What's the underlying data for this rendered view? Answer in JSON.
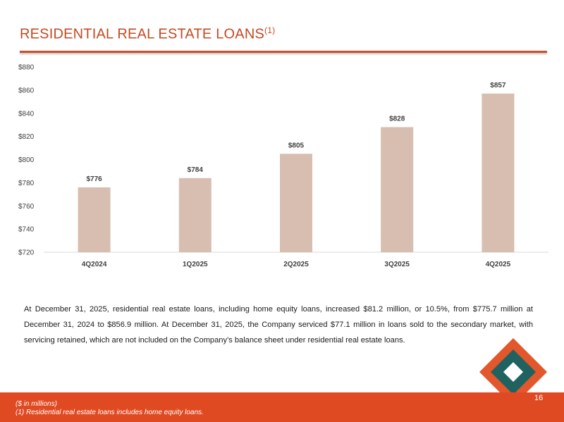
{
  "title": {
    "text": "RESIDENTIAL REAL ESTATE LOANS",
    "superscript": "(1)"
  },
  "colors": {
    "title": "#c44a21",
    "bar": "#d8bdb1",
    "footer": "#e04a22",
    "logo_orange": "#e2572b",
    "logo_teal": "#1f6260"
  },
  "chart_data": {
    "type": "bar",
    "categories": [
      "4Q2024",
      "1Q2025",
      "2Q2025",
      "3Q2025",
      "4Q2025"
    ],
    "values": [
      776,
      784,
      805,
      828,
      857
    ],
    "data_labels": [
      "$776",
      "$784",
      "$805",
      "$828",
      "$857"
    ],
    "ylim": [
      720,
      880
    ],
    "yticks": [
      720,
      740,
      760,
      780,
      800,
      820,
      840,
      860,
      880
    ],
    "ytick_labels": [
      "$720",
      "$740",
      "$760",
      "$780",
      "$800",
      "$820",
      "$840",
      "$860",
      "$880"
    ],
    "grid": false,
    "legend": false
  },
  "body_text": "At December 31, 2025, residential real estate loans, including home equity loans, increased $81.2 million, or 10.5%, from $775.7 million at December 31, 2024 to $856.9 million. At December 31, 2025, the Company serviced $77.1 million in loans sold to the secondary market, with servicing retained, which are not included on the Company’s balance sheet under residential real estate loans.",
  "logo_icon": "diamond-logo-icon",
  "footer": {
    "note_units": "($ in millions)",
    "note_1": "(1) Residential real estate loans includes home equity loans.",
    "page_number": "16"
  }
}
